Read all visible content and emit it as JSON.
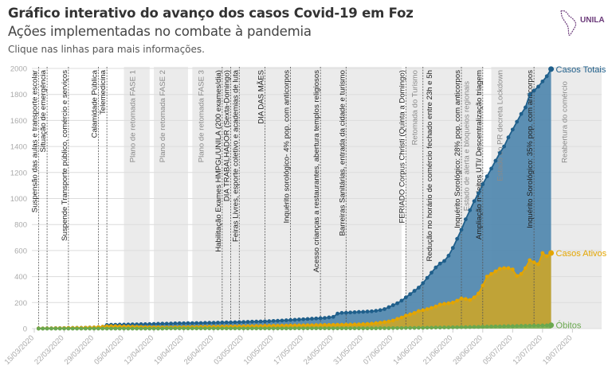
{
  "header": {
    "title": "Gráfico interativo do avanço dos casos Covid-19 em Foz",
    "subtitle": "Ações implementadas no combate à pandemia",
    "note": "Clique nas linhas para mais informações."
  },
  "logo": {
    "text": "UNILA",
    "color": "#6b3a7a"
  },
  "chart_data": {
    "type": "area",
    "title": "Gráfico interativo do avanço dos casos Covid-19 em Foz",
    "ylim": [
      0,
      2000
    ],
    "y_ticks": [
      0,
      200,
      400,
      600,
      800,
      1000,
      1200,
      1400,
      1600,
      1800,
      2000
    ],
    "x_ticks": [
      "15/03/2020",
      "22/03/2020",
      "29/03/2020",
      "05/04/2020",
      "12/04/2020",
      "19/04/2020",
      "26/04/2020",
      "03/05/2020",
      "10/05/2020",
      "17/05/2020",
      "24/05/2020",
      "31/05/2020",
      "07/06/2020",
      "14/06/2020",
      "21/06/2020",
      "28/06/2020",
      "05/07/2020",
      "12/07/2020",
      "19/07/2020"
    ],
    "grid": true,
    "legend": "labels at line ends",
    "x": [
      "16/03/2020",
      "17/03/2020",
      "18/03/2020",
      "19/03/2020",
      "20/03/2020",
      "21/03/2020",
      "22/03/2020",
      "23/03/2020",
      "24/03/2020",
      "25/03/2020",
      "26/03/2020",
      "27/03/2020",
      "28/03/2020",
      "29/03/2020",
      "30/03/2020",
      "31/03/2020",
      "01/04/2020",
      "02/04/2020",
      "03/04/2020",
      "04/04/2020",
      "05/04/2020",
      "06/04/2020",
      "07/04/2020",
      "08/04/2020",
      "09/04/2020",
      "10/04/2020",
      "11/04/2020",
      "12/04/2020",
      "13/04/2020",
      "14/04/2020",
      "15/04/2020",
      "16/04/2020",
      "17/04/2020",
      "18/04/2020",
      "19/04/2020",
      "20/04/2020",
      "21/04/2020",
      "22/04/2020",
      "23/04/2020",
      "24/04/2020",
      "25/04/2020",
      "26/04/2020",
      "27/04/2020",
      "28/04/2020",
      "29/04/2020",
      "30/04/2020",
      "01/05/2020",
      "02/05/2020",
      "03/05/2020",
      "04/05/2020",
      "05/05/2020",
      "06/05/2020",
      "07/05/2020",
      "08/05/2020",
      "09/05/2020",
      "10/05/2020",
      "11/05/2020",
      "12/05/2020",
      "13/05/2020",
      "14/05/2020",
      "15/05/2020",
      "16/05/2020",
      "17/05/2020",
      "18/05/2020",
      "19/05/2020",
      "20/05/2020",
      "21/05/2020",
      "22/05/2020",
      "23/05/2020",
      "24/05/2020",
      "25/05/2020",
      "26/05/2020",
      "27/05/2020",
      "28/05/2020",
      "29/05/2020",
      "30/05/2020",
      "31/05/2020",
      "01/06/2020",
      "02/06/2020",
      "03/06/2020",
      "04/06/2020",
      "05/06/2020",
      "06/06/2020",
      "07/06/2020",
      "08/06/2020",
      "09/06/2020",
      "10/06/2020",
      "11/06/2020",
      "12/06/2020",
      "13/06/2020",
      "14/06/2020",
      "15/06/2020",
      "16/06/2020",
      "17/06/2020",
      "18/06/2020",
      "19/06/2020",
      "20/06/2020",
      "21/06/2020",
      "22/06/2020",
      "23/06/2020",
      "24/06/2020",
      "25/06/2020",
      "26/06/2020",
      "27/06/2020",
      "28/06/2020",
      "29/06/2020",
      "30/06/2020",
      "01/07/2020",
      "02/07/2020",
      "03/07/2020",
      "04/07/2020",
      "05/07/2020",
      "06/07/2020",
      "07/07/2020",
      "08/07/2020",
      "09/07/2020",
      "10/07/2020",
      "11/07/2020",
      "12/07/2020",
      "13/07/2020",
      "14/07/2020"
    ],
    "series": [
      {
        "name": "Casos Totais",
        "color": "#1f5f8b",
        "fill": "#4f87ae",
        "values": [
          1,
          1,
          2,
          2,
          3,
          3,
          4,
          5,
          5,
          6,
          6,
          7,
          8,
          9,
          11,
          14,
          28,
          30,
          30,
          31,
          31,
          32,
          33,
          33,
          34,
          34,
          35,
          36,
          37,
          38,
          38,
          39,
          40,
          41,
          41,
          42,
          42,
          43,
          43,
          44,
          45,
          45,
          46,
          47,
          48,
          48,
          49,
          50,
          51,
          52,
          53,
          54,
          55,
          56,
          57,
          59,
          60,
          62,
          64,
          66,
          68,
          70,
          72,
          74,
          76,
          78,
          80,
          82,
          86,
          90,
          115,
          121,
          122,
          124,
          126,
          128,
          129,
          131,
          133,
          137,
          142,
          150,
          165,
          180,
          195,
          215,
          240,
          265,
          290,
          315,
          350,
          390,
          430,
          470,
          500,
          520,
          560,
          620,
          690,
          760,
          840,
          910,
          980,
          1040,
          1110,
          1170,
          1230,
          1290,
          1350,
          1400,
          1470,
          1530,
          1590,
          1650,
          1700,
          1800,
          1830,
          1860,
          1900,
          1940,
          1995
        ]
      },
      {
        "name": "Casos Ativos",
        "color": "#e3a500",
        "fill": "#c9a52c",
        "values": [
          1,
          1,
          2,
          2,
          3,
          3,
          4,
          5,
          5,
          6,
          6,
          7,
          8,
          9,
          11,
          14,
          18,
          19,
          19,
          18,
          17,
          16,
          15,
          14,
          13,
          12,
          12,
          11,
          11,
          10,
          10,
          10,
          11,
          11,
          12,
          12,
          13,
          13,
          14,
          14,
          15,
          15,
          15,
          16,
          16,
          17,
          17,
          18,
          18,
          19,
          19,
          20,
          20,
          21,
          21,
          22,
          22,
          23,
          23,
          24,
          24,
          25,
          25,
          26,
          26,
          27,
          27,
          28,
          28,
          29,
          30,
          30,
          31,
          31,
          32,
          33,
          34,
          36,
          38,
          42,
          46,
          50,
          55,
          62,
          75,
          85,
          100,
          110,
          120,
          135,
          141,
          150,
          159,
          170,
          185,
          190,
          195,
          200,
          215,
          232,
          228,
          220,
          240,
          270,
          330,
          400,
          420,
          440,
          460,
          465,
          465,
          455,
          404,
          420,
          465,
          526,
          510,
          495,
          581,
          557,
          581
        ]
      },
      {
        "name": "Óbitos",
        "color": "#6aa84f",
        "fill": "#7fb560",
        "values": [
          0,
          0,
          0,
          0,
          0,
          0,
          0,
          0,
          0,
          0,
          0,
          0,
          0,
          0,
          0,
          0,
          0,
          0,
          0,
          0,
          0,
          0,
          0,
          0,
          0,
          0,
          0,
          0,
          0,
          0,
          1,
          1,
          1,
          1,
          1,
          1,
          1,
          1,
          1,
          1,
          1,
          1,
          1,
          1,
          1,
          1,
          1,
          1,
          1,
          1,
          1,
          1,
          1,
          1,
          1,
          1,
          1,
          1,
          1,
          1,
          2,
          2,
          2,
          2,
          2,
          2,
          2,
          2,
          2,
          2,
          2,
          2,
          2,
          2,
          2,
          2,
          2,
          2,
          2,
          2,
          3,
          3,
          3,
          4,
          4,
          4,
          5,
          5,
          5,
          6,
          6,
          7,
          7,
          8,
          8,
          9,
          9,
          10,
          10,
          11,
          11,
          12,
          13,
          13,
          14,
          15,
          16,
          17,
          17,
          18,
          19,
          19,
          20,
          21,
          21,
          22,
          23,
          23,
          24,
          25,
          26
        ]
      }
    ],
    "phases": [
      {
        "label": "Plano de retomada FASE 1",
        "start": "05/04/2020",
        "end": "11/04/2020"
      },
      {
        "label": "Plano de retomada FASE 2",
        "start": "12/04/2020",
        "end": "20/04/2020"
      },
      {
        "label": "Plano de retomada FASE 3",
        "start": "21/04/2020",
        "end": "09/06/2020"
      },
      {
        "label": "Retomada do Turismo",
        "start": "10/06/2020",
        "end": "28/06/2020"
      },
      {
        "label": "Estado do PR decreta Lockdown",
        "start": "30/06/2020",
        "end": "26/07/2020"
      }
    ],
    "phase_color": "#ebebeb",
    "events": [
      {
        "date": "16/03/2020",
        "label": "Suspensão das aulas e transporte escolar"
      },
      {
        "date": "18/03/2020",
        "label": "Situação de emergência"
      },
      {
        "date": "23/03/2020",
        "label": "Suspende Transporte público, comércio e serviços"
      },
      {
        "date": "30/03/2020",
        "label": "Calamidade Pública"
      },
      {
        "date": "01/04/2020",
        "label": "Telemedicina"
      },
      {
        "date": "28/04/2020",
        "label": "Habilitação Exames HMPGL/UNILA (200 exames/dia)"
      },
      {
        "date": "30/04/2020",
        "label": "DIA TRABALHADOR (Sexta-Domingo)"
      },
      {
        "date": "02/05/2020",
        "label": "Feiras Livres, esporte coletivo e academias de luta"
      },
      {
        "date": "08/05/2020",
        "label": "DIA DAS MÃES"
      },
      {
        "date": "14/05/2020",
        "label": "Inquérito sorológico- 4% pop. com anticorpos"
      },
      {
        "date": "21/05/2020",
        "label": "Acesso crianças a restaurantes, abertura templos religiosos"
      },
      {
        "date": "27/05/2020",
        "label": "Barreiras Sanitárias, entrada da cidade e turismo"
      },
      {
        "date": "10/06/2020",
        "label": "FERIADO Corpus Christi (Quinta a Domingo)"
      },
      {
        "date": "14/06/2020",
        "label": "Redução no horário de comércio fechado entre 23h e 5h"
      },
      {
        "date": "23/06/2020",
        "label": "Inquérito Sorológico: 28% pop. com anticorpos"
      },
      {
        "date": "24/06/2020",
        "label": "Estado de alerta e bloqueios regionais",
        "muted": true
      },
      {
        "date": "28/06/2020",
        "label": "Ampliação nº leitos UTI/ Descentralização triagem"
      },
      {
        "date": "10/07/2020",
        "label": "Inquérito Sorológico: 35% pop. com anticorpos"
      },
      {
        "date": "17/07/2020",
        "label": "Reabertura do comércio",
        "muted": true
      }
    ]
  }
}
